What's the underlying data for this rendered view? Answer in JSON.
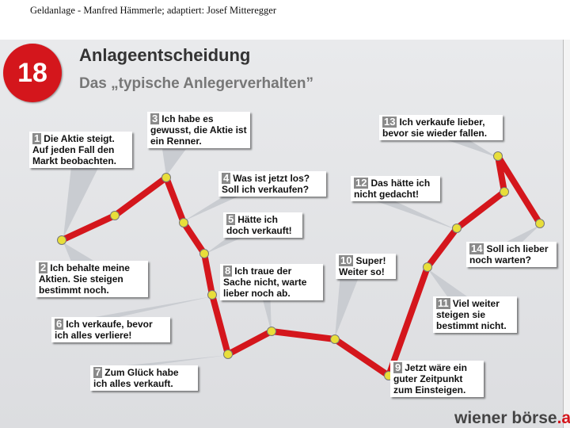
{
  "caption": "Geldanlage - Manfred Hämmerle; adaptiert: Josef Mitteregger",
  "badge": "18",
  "title": "Anlageentscheidung",
  "subtitle": "Das „typische Anlegerverhalten”",
  "logo": {
    "left": "wiener ",
    "right": "börse",
    "dot": ".at"
  },
  "colors": {
    "line": "#d4161c",
    "point": "#e8de3a",
    "badge": "#d4161c",
    "pointer": "#c9ccd1"
  },
  "notes": [
    {
      "num": "1",
      "text": "Die Aktie steigt. Auf jeden Fall den Markt beobachten."
    },
    {
      "num": "2",
      "text": "Ich behalte meine Aktien. Sie steigen bestimmt noch."
    },
    {
      "num": "3",
      "text": "Ich habe es gewusst, die Aktie ist ein Renner."
    },
    {
      "num": "4",
      "text": "Was ist jetzt los? Soll ich verkaufen?"
    },
    {
      "num": "5",
      "text": "Hätte ich doch verkauft!"
    },
    {
      "num": "6",
      "text": "Ich verkaufe, bevor ich alles verliere!"
    },
    {
      "num": "7",
      "text": "Zum Glück habe ich alles verkauft."
    },
    {
      "num": "8",
      "text": "Ich traue der Sache nicht, warte lieber noch ab."
    },
    {
      "num": "9",
      "text": "Jetzt wäre ein guter Zeitpunkt zum Einsteigen."
    },
    {
      "num": "10",
      "text": "Super! Weiter so!"
    },
    {
      "num": "11",
      "text": "Viel weiter steigen sie bestimmt nicht."
    },
    {
      "num": "12",
      "text": "Das hätte ich nicht gedacht!"
    },
    {
      "num": "13",
      "text": "Ich verkaufe lieber, bevor sie wieder fallen."
    },
    {
      "num": "14",
      "text": "Soll ich lieber noch warten?"
    }
  ]
}
